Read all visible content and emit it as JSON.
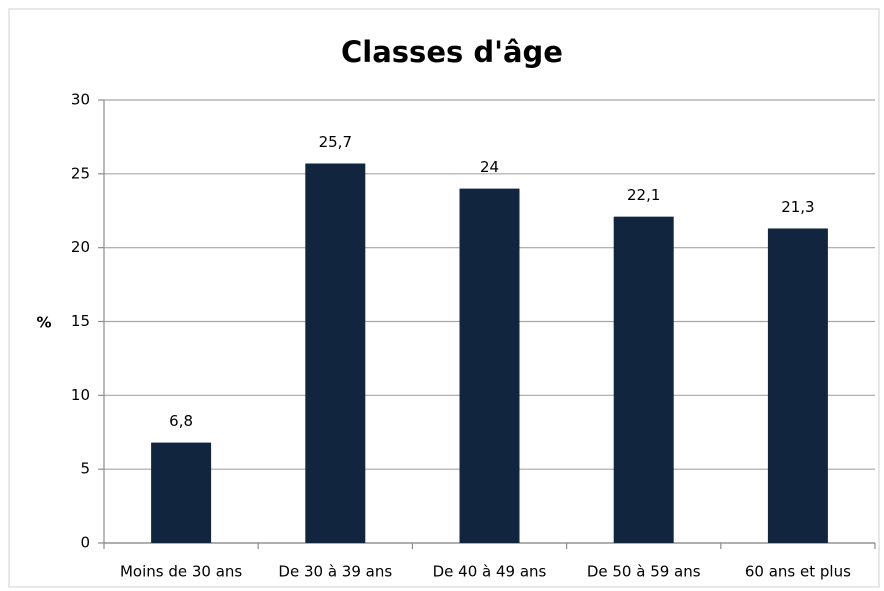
{
  "chart_data": {
    "type": "bar",
    "title": "Classes d'âge",
    "y_label": "%",
    "categories": [
      "Moins de 30 ans",
      "De 30 à 39 ans",
      "De 40 à 49 ans",
      "De 50 à 59 ans",
      "60 ans et plus"
    ],
    "values": [
      6.8,
      25.7,
      24,
      22.1,
      21.3
    ],
    "value_labels": [
      "6,8",
      "25,7",
      "24",
      "22,1",
      "21,3"
    ],
    "color": "#12253f",
    "ylim": [
      0,
      30
    ],
    "yticks": [
      0,
      5,
      10,
      15,
      20,
      25,
      30
    ],
    "grid": true
  }
}
